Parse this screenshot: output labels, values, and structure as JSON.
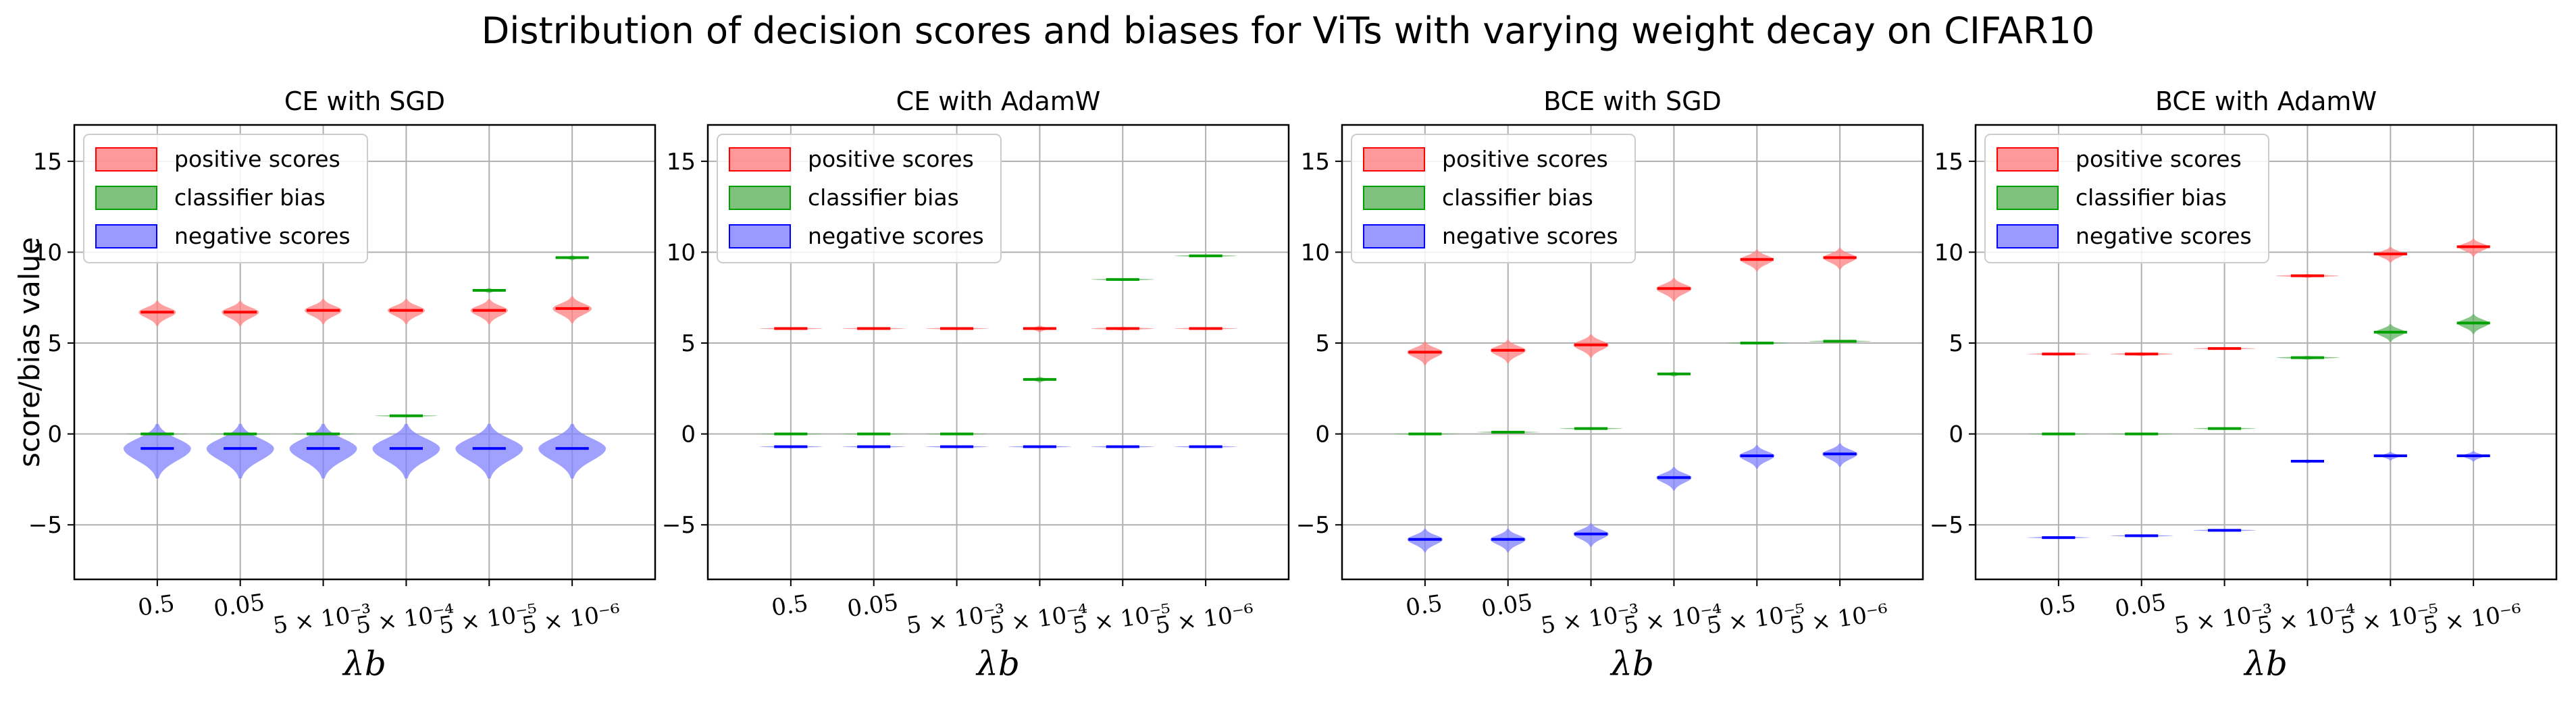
{
  "figure_title": "Distribution of decision scores and biases for ViTs with varying weight decay on CIFAR10",
  "colors": {
    "positive_fill": "#ff7f7f",
    "positive_line": "#ff0000",
    "bias_fill": "#5fb05f",
    "bias_line": "#00a000",
    "negative_fill": "#8080ff",
    "negative_line": "#0000ff",
    "grid": "#b0b0b0"
  },
  "chart_data": [
    {
      "type": "violin",
      "title": "CE with SGD",
      "xlabel": "λb",
      "ylabel": "score/bias value",
      "ylim": [
        -8,
        17
      ],
      "yticks": [
        -5,
        0,
        5,
        10,
        15
      ],
      "ytick_labels": [
        "−5",
        "0",
        "5",
        "10",
        "15"
      ],
      "categories": [
        "0.5",
        "0.05",
        "5 × 10⁻³",
        "5 × 10⁻⁴",
        "5 × 10⁻⁵",
        "5 × 10⁻⁶"
      ],
      "legend": {
        "position": "upper left",
        "entries": [
          "positive scores",
          "classifier bias",
          "negative scores"
        ]
      },
      "series": [
        {
          "name": "positive scores",
          "medians": [
            6.7,
            6.7,
            6.8,
            6.8,
            6.8,
            6.9
          ],
          "spreads": [
            1.4,
            1.4,
            1.4,
            1.4,
            1.4,
            1.5
          ]
        },
        {
          "name": "classifier bias",
          "medians": [
            0.0,
            0.0,
            0.0,
            1.0,
            7.9,
            9.7
          ],
          "spreads": [
            0.1,
            0.1,
            0.1,
            0.15,
            0.3,
            0.3
          ]
        },
        {
          "name": "negative scores",
          "medians": [
            -0.8,
            -0.8,
            -0.8,
            -0.8,
            -0.8,
            -0.8
          ],
          "spreads": [
            3.0,
            3.0,
            3.0,
            3.0,
            3.0,
            3.0
          ]
        }
      ]
    },
    {
      "type": "violin",
      "title": "CE with AdamW",
      "xlabel": "λb",
      "ylabel": "",
      "ylim": [
        -8,
        17
      ],
      "yticks": [
        -5,
        0,
        5,
        10,
        15
      ],
      "ytick_labels": [
        "−5",
        "0",
        "5",
        "10",
        "15"
      ],
      "categories": [
        "0.5",
        "0.05",
        "5 × 10⁻³",
        "5 × 10⁻⁴",
        "5 × 10⁻⁵",
        "5 × 10⁻⁶"
      ],
      "legend": {
        "position": "upper left",
        "entries": [
          "positive scores",
          "classifier bias",
          "negative scores"
        ]
      },
      "series": [
        {
          "name": "positive scores",
          "medians": [
            5.8,
            5.8,
            5.8,
            5.8,
            5.8,
            5.8
          ],
          "spreads": [
            0.15,
            0.15,
            0.15,
            0.4,
            0.2,
            0.15
          ]
        },
        {
          "name": "classifier bias",
          "medians": [
            0.0,
            0.0,
            0.0,
            3.0,
            8.5,
            9.8
          ],
          "spreads": [
            0.1,
            0.1,
            0.1,
            0.35,
            0.15,
            0.15
          ]
        },
        {
          "name": "negative scores",
          "medians": [
            -0.7,
            -0.7,
            -0.7,
            -0.7,
            -0.7,
            -0.7
          ],
          "spreads": [
            0.15,
            0.15,
            0.15,
            0.15,
            0.15,
            0.15
          ]
        }
      ]
    },
    {
      "type": "violin",
      "title": "BCE with SGD",
      "xlabel": "λb",
      "ylabel": "",
      "ylim": [
        -8,
        17
      ],
      "yticks": [
        -5,
        0,
        5,
        10,
        15
      ],
      "ytick_labels": [
        "−5",
        "0",
        "5",
        "10",
        "15"
      ],
      "categories": [
        "0.5",
        "0.05",
        "5 × 10⁻³",
        "5 × 10⁻⁴",
        "5 × 10⁻⁵",
        "5 × 10⁻⁶"
      ],
      "legend": {
        "position": "upper left",
        "entries": [
          "positive scores",
          "classifier bias",
          "negative scores"
        ]
      },
      "series": [
        {
          "name": "positive scores",
          "medians": [
            4.5,
            4.6,
            4.9,
            8.0,
            9.6,
            9.7
          ],
          "spreads": [
            1.3,
            1.3,
            1.3,
            1.3,
            1.2,
            1.2
          ]
        },
        {
          "name": "classifier bias",
          "medians": [
            0.0,
            0.1,
            0.3,
            3.3,
            5.0,
            5.1
          ],
          "spreads": [
            0.1,
            0.1,
            0.15,
            0.3,
            0.15,
            0.15
          ]
        },
        {
          "name": "negative scores",
          "medians": [
            -5.8,
            -5.8,
            -5.5,
            -2.4,
            -1.2,
            -1.1
          ],
          "spreads": [
            1.3,
            1.3,
            1.3,
            1.3,
            1.3,
            1.3
          ]
        }
      ]
    },
    {
      "type": "violin",
      "title": "BCE with AdamW",
      "xlabel": "λb",
      "ylabel": "",
      "ylim": [
        -8,
        17
      ],
      "yticks": [
        -5,
        0,
        5,
        10,
        15
      ],
      "ytick_labels": [
        "−5",
        "0",
        "5",
        "10",
        "15"
      ],
      "categories": [
        "0.5",
        "0.05",
        "5 × 10⁻³",
        "5 × 10⁻⁴",
        "5 × 10⁻⁵",
        "5 × 10⁻⁶"
      ],
      "legend": {
        "position": "upper left",
        "entries": [
          "positive scores",
          "classifier bias",
          "negative scores"
        ]
      },
      "series": [
        {
          "name": "positive scores",
          "medians": [
            4.4,
            4.4,
            4.7,
            8.7,
            9.9,
            10.3
          ],
          "spreads": [
            0.15,
            0.2,
            0.15,
            0.2,
            0.9,
            1.0
          ]
        },
        {
          "name": "classifier bias",
          "medians": [
            0.0,
            0.0,
            0.3,
            4.2,
            5.6,
            6.1
          ],
          "spreads": [
            0.1,
            0.1,
            0.15,
            0.2,
            1.0,
            1.1
          ]
        },
        {
          "name": "negative scores",
          "medians": [
            -5.7,
            -5.6,
            -5.3,
            -1.5,
            -1.2,
            -1.2
          ],
          "spreads": [
            0.15,
            0.15,
            0.15,
            0.25,
            0.5,
            0.6
          ]
        }
      ]
    }
  ]
}
